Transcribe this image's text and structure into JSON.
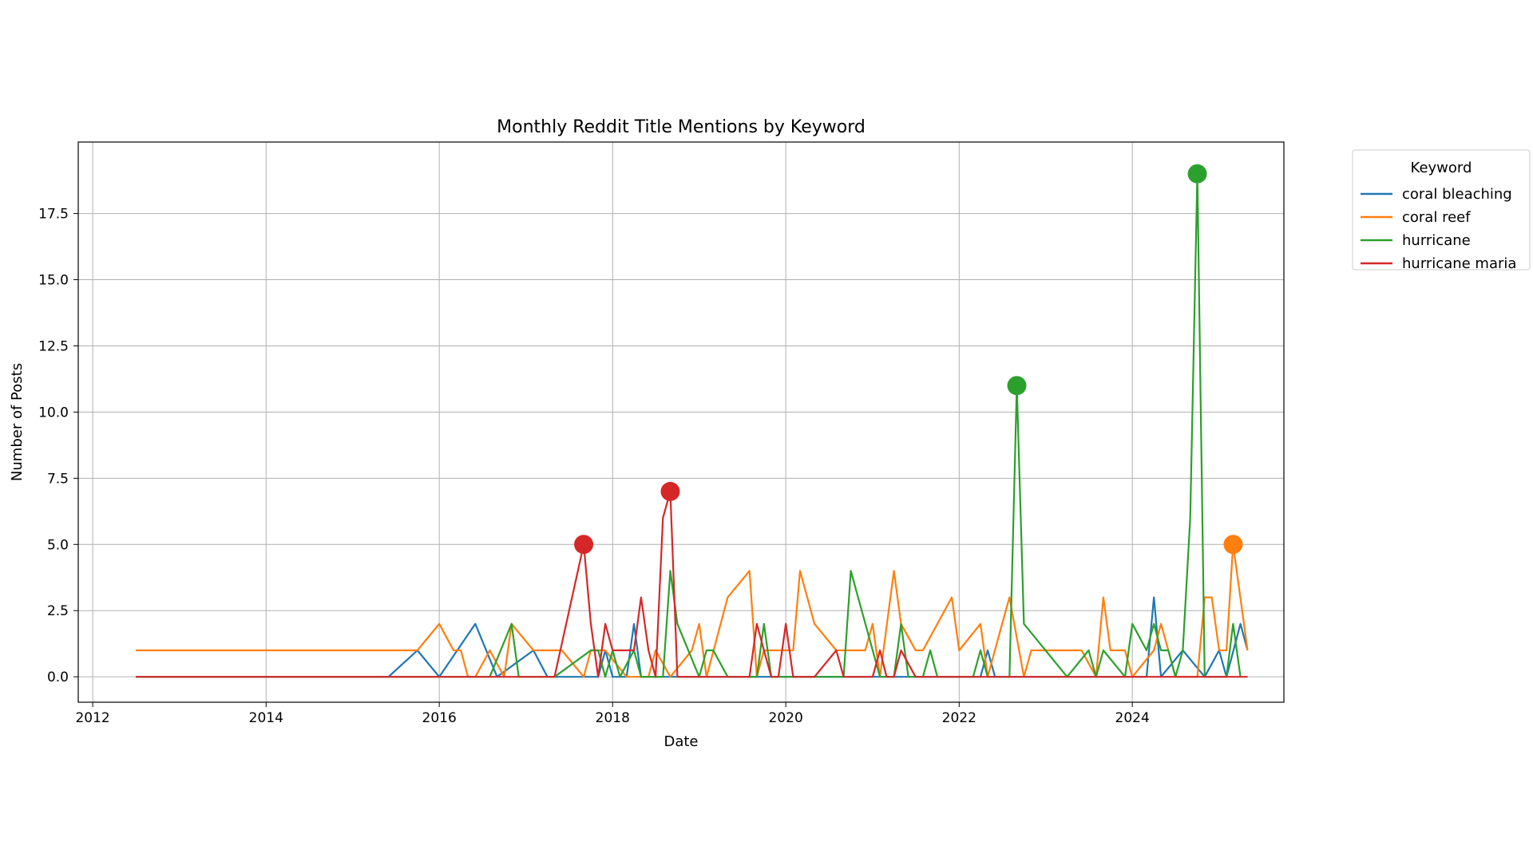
{
  "chart_data": {
    "type": "line",
    "title": "Monthly Reddit Title Mentions by Keyword",
    "xlabel": "Date",
    "ylabel": "Number of Posts",
    "xlim": [
      "2011-11-01",
      "2025-10-01"
    ],
    "ylim": [
      -0.96,
      20.2
    ],
    "xticks": [
      "2012",
      "2014",
      "2016",
      "2018",
      "2020",
      "2022",
      "2024"
    ],
    "yticks": [
      "0.0",
      "2.5",
      "5.0",
      "7.5",
      "10.0",
      "12.5",
      "15.0",
      "17.5"
    ],
    "grid": true,
    "legend": {
      "title": "Keyword",
      "position": "outside-top-right"
    },
    "series": [
      {
        "name": "coral bleaching",
        "color": "#1f77b4",
        "points": [
          [
            "2012-07-01",
            0
          ],
          [
            "2015-06-01",
            0
          ],
          [
            "2015-10-01",
            1
          ],
          [
            "2016-01-01",
            0
          ],
          [
            "2016-06-01",
            2
          ],
          [
            "2016-09-01",
            0
          ],
          [
            "2017-02-01",
            1
          ],
          [
            "2017-04-01",
            0
          ],
          [
            "2017-11-01",
            0
          ],
          [
            "2017-12-01",
            1
          ],
          [
            "2018-01-01",
            0
          ],
          [
            "2018-03-01",
            0
          ],
          [
            "2018-04-01",
            2
          ],
          [
            "2018-05-01",
            0
          ],
          [
            "2022-04-01",
            0
          ],
          [
            "2022-05-01",
            1
          ],
          [
            "2022-06-01",
            0
          ],
          [
            "2024-03-01",
            0
          ],
          [
            "2024-04-01",
            3
          ],
          [
            "2024-05-01",
            0
          ],
          [
            "2024-08-01",
            1
          ],
          [
            "2024-11-01",
            0
          ],
          [
            "2025-01-01",
            1
          ],
          [
            "2025-02-01",
            0
          ],
          [
            "2025-04-01",
            2
          ],
          [
            "2025-05-01",
            1
          ]
        ]
      },
      {
        "name": "coral reef",
        "color": "#ff7f0e",
        "points": [
          [
            "2012-07-01",
            1
          ],
          [
            "2015-10-01",
            1
          ],
          [
            "2016-01-01",
            2
          ],
          [
            "2016-03-01",
            1
          ],
          [
            "2016-04-01",
            1
          ],
          [
            "2016-05-01",
            0
          ],
          [
            "2016-06-01",
            0
          ],
          [
            "2016-08-01",
            1
          ],
          [
            "2016-10-01",
            0
          ],
          [
            "2016-11-01",
            2
          ],
          [
            "2017-02-01",
            1
          ],
          [
            "2017-06-01",
            1
          ],
          [
            "2017-09-01",
            0
          ],
          [
            "2017-10-01",
            1
          ],
          [
            "2017-12-01",
            1
          ],
          [
            "2018-03-01",
            0
          ],
          [
            "2018-06-01",
            0
          ],
          [
            "2018-07-01",
            1
          ],
          [
            "2018-09-01",
            0
          ],
          [
            "2018-12-01",
            1
          ],
          [
            "2019-01-01",
            2
          ],
          [
            "2019-02-01",
            0
          ],
          [
            "2019-05-01",
            3
          ],
          [
            "2019-08-01",
            4
          ],
          [
            "2019-09-01",
            0
          ],
          [
            "2019-10-01",
            1
          ],
          [
            "2020-02-01",
            1
          ],
          [
            "2020-03-01",
            4
          ],
          [
            "2020-05-01",
            2
          ],
          [
            "2020-08-01",
            1
          ],
          [
            "2020-12-01",
            1
          ],
          [
            "2021-01-01",
            2
          ],
          [
            "2021-02-01",
            0
          ],
          [
            "2021-04-01",
            4
          ],
          [
            "2021-05-01",
            2
          ],
          [
            "2021-07-01",
            1
          ],
          [
            "2021-08-01",
            1
          ],
          [
            "2021-10-01",
            2
          ],
          [
            "2021-12-01",
            3
          ],
          [
            "2022-01-01",
            1
          ],
          [
            "2022-04-01",
            2
          ],
          [
            "2022-05-01",
            0
          ],
          [
            "2022-07-01",
            2
          ],
          [
            "2022-08-01",
            3
          ],
          [
            "2022-10-01",
            0
          ],
          [
            "2022-11-01",
            1
          ],
          [
            "2023-06-01",
            1
          ],
          [
            "2023-08-01",
            0
          ],
          [
            "2023-09-01",
            3
          ],
          [
            "2023-10-01",
            1
          ],
          [
            "2023-12-01",
            1
          ],
          [
            "2024-01-01",
            0
          ],
          [
            "2024-04-01",
            1
          ],
          [
            "2024-05-01",
            2
          ],
          [
            "2024-06-01",
            1
          ],
          [
            "2024-07-01",
            0
          ],
          [
            "2024-10-01",
            0
          ],
          [
            "2024-11-01",
            3
          ],
          [
            "2024-12-01",
            3
          ],
          [
            "2025-01-01",
            1
          ],
          [
            "2025-02-01",
            1
          ],
          [
            "2025-03-01",
            5
          ],
          [
            "2025-05-01",
            1
          ]
        ]
      },
      {
        "name": "hurricane",
        "color": "#2ca02c",
        "points": [
          [
            "2012-07-01",
            0
          ],
          [
            "2016-08-01",
            0
          ],
          [
            "2016-11-01",
            2
          ],
          [
            "2016-12-01",
            0
          ],
          [
            "2017-05-01",
            0
          ],
          [
            "2017-10-01",
            1
          ],
          [
            "2017-11-01",
            1
          ],
          [
            "2017-12-01",
            0
          ],
          [
            "2018-01-01",
            1
          ],
          [
            "2018-02-01",
            0
          ],
          [
            "2018-04-01",
            1
          ],
          [
            "2018-05-01",
            0
          ],
          [
            "2018-08-01",
            0
          ],
          [
            "2018-09-01",
            4
          ],
          [
            "2018-10-01",
            2
          ],
          [
            "2019-01-01",
            0
          ],
          [
            "2019-02-01",
            1
          ],
          [
            "2019-03-01",
            1
          ],
          [
            "2019-05-01",
            0
          ],
          [
            "2019-09-01",
            0
          ],
          [
            "2019-10-01",
            2
          ],
          [
            "2019-11-01",
            0
          ],
          [
            "2020-09-01",
            0
          ],
          [
            "2020-10-01",
            4
          ],
          [
            "2021-02-01",
            0
          ],
          [
            "2021-04-01",
            0
          ],
          [
            "2021-05-01",
            2
          ],
          [
            "2021-06-01",
            0
          ],
          [
            "2021-08-01",
            0
          ],
          [
            "2021-09-01",
            1
          ],
          [
            "2021-10-01",
            0
          ],
          [
            "2022-03-01",
            0
          ],
          [
            "2022-04-01",
            1
          ],
          [
            "2022-05-01",
            0
          ],
          [
            "2022-08-01",
            0
          ],
          [
            "2022-09-01",
            11
          ],
          [
            "2022-10-01",
            2
          ],
          [
            "2023-04-01",
            0
          ],
          [
            "2023-07-01",
            1
          ],
          [
            "2023-08-01",
            0
          ],
          [
            "2023-09-01",
            1
          ],
          [
            "2023-12-01",
            0
          ],
          [
            "2024-01-01",
            2
          ],
          [
            "2024-03-01",
            1
          ],
          [
            "2024-04-01",
            2
          ],
          [
            "2024-05-01",
            1
          ],
          [
            "2024-06-01",
            1
          ],
          [
            "2024-07-01",
            0
          ],
          [
            "2024-08-01",
            1
          ],
          [
            "2024-09-01",
            6
          ],
          [
            "2024-10-01",
            19
          ],
          [
            "2024-11-01",
            0
          ],
          [
            "2025-02-01",
            0
          ],
          [
            "2025-03-01",
            2
          ],
          [
            "2025-04-01",
            0
          ]
        ]
      },
      {
        "name": "hurricane maria",
        "color": "#d62728",
        "points": [
          [
            "2012-07-01",
            0
          ],
          [
            "2017-05-01",
            0
          ],
          [
            "2017-09-01",
            5
          ],
          [
            "2017-10-01",
            2
          ],
          [
            "2017-11-01",
            0
          ],
          [
            "2017-12-01",
            2
          ],
          [
            "2018-01-01",
            1
          ],
          [
            "2018-02-01",
            1
          ],
          [
            "2018-03-01",
            1
          ],
          [
            "2018-04-01",
            1
          ],
          [
            "2018-05-01",
            3
          ],
          [
            "2018-06-01",
            1
          ],
          [
            "2018-07-01",
            0
          ],
          [
            "2018-08-01",
            6
          ],
          [
            "2018-09-01",
            7
          ],
          [
            "2018-10-01",
            0
          ],
          [
            "2019-08-01",
            0
          ],
          [
            "2019-09-01",
            2
          ],
          [
            "2019-10-01",
            1
          ],
          [
            "2019-11-01",
            0
          ],
          [
            "2019-12-01",
            0
          ],
          [
            "2020-01-01",
            2
          ],
          [
            "2020-02-01",
            0
          ],
          [
            "2020-05-01",
            0
          ],
          [
            "2020-08-01",
            1
          ],
          [
            "2020-09-01",
            0
          ],
          [
            "2021-01-01",
            0
          ],
          [
            "2021-02-01",
            1
          ],
          [
            "2021-03-01",
            0
          ],
          [
            "2021-04-01",
            0
          ],
          [
            "2021-05-01",
            1
          ],
          [
            "2021-07-01",
            0
          ],
          [
            "2025-05-01",
            0
          ]
        ]
      }
    ],
    "highlighted_peaks": [
      {
        "series": "hurricane maria",
        "x": "2017-09-01",
        "y": 5
      },
      {
        "series": "hurricane maria",
        "x": "2018-09-01",
        "y": 7
      },
      {
        "series": "hurricane",
        "x": "2022-09-01",
        "y": 11
      },
      {
        "series": "hurricane",
        "x": "2024-10-01",
        "y": 19
      },
      {
        "series": "coral reef",
        "x": "2025-03-01",
        "y": 5
      }
    ]
  }
}
